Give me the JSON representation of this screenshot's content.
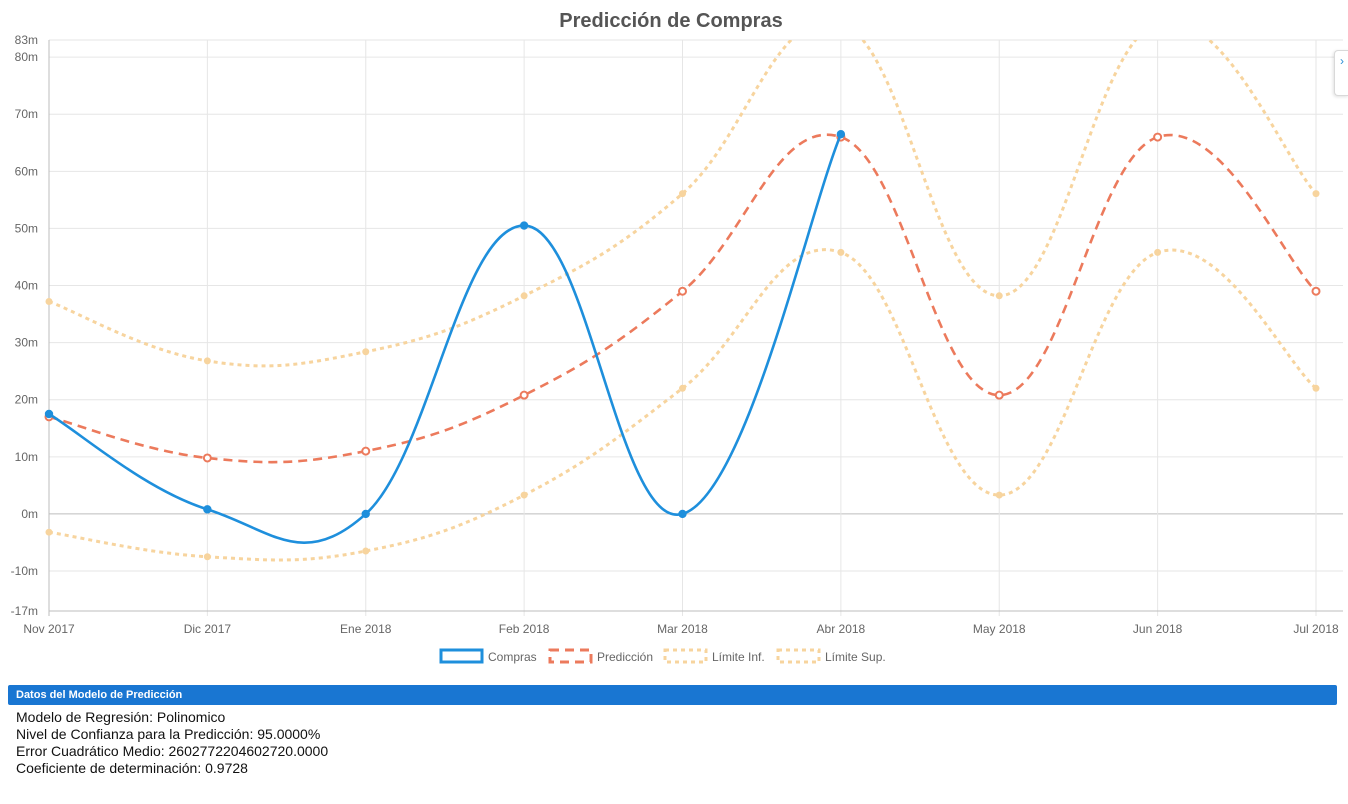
{
  "chart_data": {
    "type": "line",
    "title": "Predicción de Compras",
    "categories": [
      "Nov 2017",
      "Dic 2017",
      "Ene 2018",
      "Feb 2018",
      "Mar 2018",
      "Abr 2018",
      "May 2018",
      "Jun 2018",
      "Jul 2018"
    ],
    "yticks": [
      "83m",
      "80m",
      "70m",
      "60m",
      "50m",
      "40m",
      "30m",
      "20m",
      "10m",
      "0m",
      "-10m",
      "-17m"
    ],
    "ytick_values": [
      83,
      80,
      70,
      60,
      50,
      40,
      30,
      20,
      10,
      0,
      -10,
      -17
    ],
    "ylim": [
      -17,
      83
    ],
    "unit_note": "millions",
    "grid": true,
    "legend_position": "bottom",
    "series": [
      {
        "name": "Compras",
        "color": "#1e8fdc",
        "style": "solid",
        "marker": "filled",
        "values": [
          17.5,
          0.8,
          0.0,
          50.5,
          0.0,
          66.5,
          null,
          null,
          null
        ]
      },
      {
        "name": "Predicción",
        "color": "#ec7a5c",
        "style": "dashed",
        "marker": "hollow",
        "values": [
          17.0,
          9.8,
          11.0,
          20.8,
          39.0,
          66.0,
          20.8,
          66.0,
          39.0
        ]
      },
      {
        "name": "Límite Inf.",
        "color": "#f7d49e",
        "style": "dotted",
        "marker": "filled",
        "values": [
          -3.2,
          -7.5,
          -6.5,
          3.3,
          22.0,
          45.8,
          3.3,
          45.8,
          22.0
        ]
      },
      {
        "name": "Límite Sup.",
        "color": "#f7d49e",
        "style": "dotted",
        "marker": "filled",
        "values": [
          37.2,
          26.8,
          28.4,
          38.2,
          56.1,
          86.0,
          38.2,
          86.0,
          56.1
        ]
      }
    ]
  },
  "side_tab": {
    "icon": "chevron-right-icon",
    "glyph": "›"
  },
  "panel": {
    "header": "Datos del Modelo de Predicción",
    "lines": [
      "Modelo de Regresión: Polinomico",
      "Nivel de Confianza para la Predicción: 95.0000%",
      "Error Cuadrático Medio: 2602772204602720.0000",
      "Coeficiente de determinación: 0.9728"
    ]
  }
}
